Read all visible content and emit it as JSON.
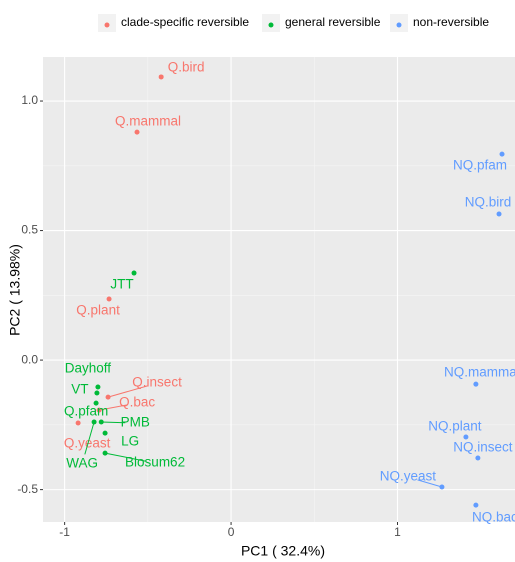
{
  "chart_data": {
    "type": "scatter",
    "x_label": "PC1 ( 32.4%)",
    "y_label": "PC2 ( 13.98%)",
    "xlim": [
      -1.13,
      1.706
    ],
    "ylim": [
      -0.625,
      1.17
    ],
    "xticks": [
      -1,
      0,
      1
    ],
    "yticks": [
      -0.5,
      {
        "value": 0,
        "label": "0.0"
      },
      0.5,
      {
        "value": 1,
        "label": "1.0"
      }
    ],
    "grid": true,
    "legend": "top",
    "series": [
      {
        "name": "clade-specific reversible",
        "color": "#F8766D",
        "labels": [
          "Q.bird",
          "Q.mammal",
          "Q.plant",
          "Q.insect",
          "Q.bac",
          "Q.yeast"
        ],
        "x": [
          -0.42,
          -0.565,
          -0.733,
          -0.739,
          -0.793,
          -0.919
        ],
        "values": [
          1.093,
          0.88,
          0.236,
          -0.143,
          -0.193,
          -0.243
        ]
      },
      {
        "name": "general reversible",
        "color": "#00BA38",
        "labels": [
          "JTT",
          "Dayhoff",
          "VT",
          "Q.pfam",
          "WAG",
          "PMB",
          "LG",
          "Blosum62"
        ],
        "x": [
          -0.583,
          -0.8,
          -0.806,
          -0.811,
          -0.823,
          -0.78,
          -0.757,
          -0.757
        ],
        "values": [
          0.336,
          -0.104,
          -0.127,
          -0.166,
          -0.239,
          -0.239,
          -0.282,
          -0.359
        ]
      },
      {
        "name": "non-reversible",
        "color": "#619CFF",
        "labels": [
          "NQ.pfam",
          "NQ.bird",
          "NQ.mammal",
          "NQ.plant",
          "NQ.insect",
          "NQ.yeast",
          "NQ.bac"
        ],
        "x": [
          1.628,
          1.61,
          1.471,
          1.411,
          1.483,
          1.267,
          1.471
        ],
        "values": [
          0.795,
          0.564,
          -0.093,
          -0.297,
          -0.378,
          -0.49,
          -0.56
        ]
      }
    ]
  }
}
